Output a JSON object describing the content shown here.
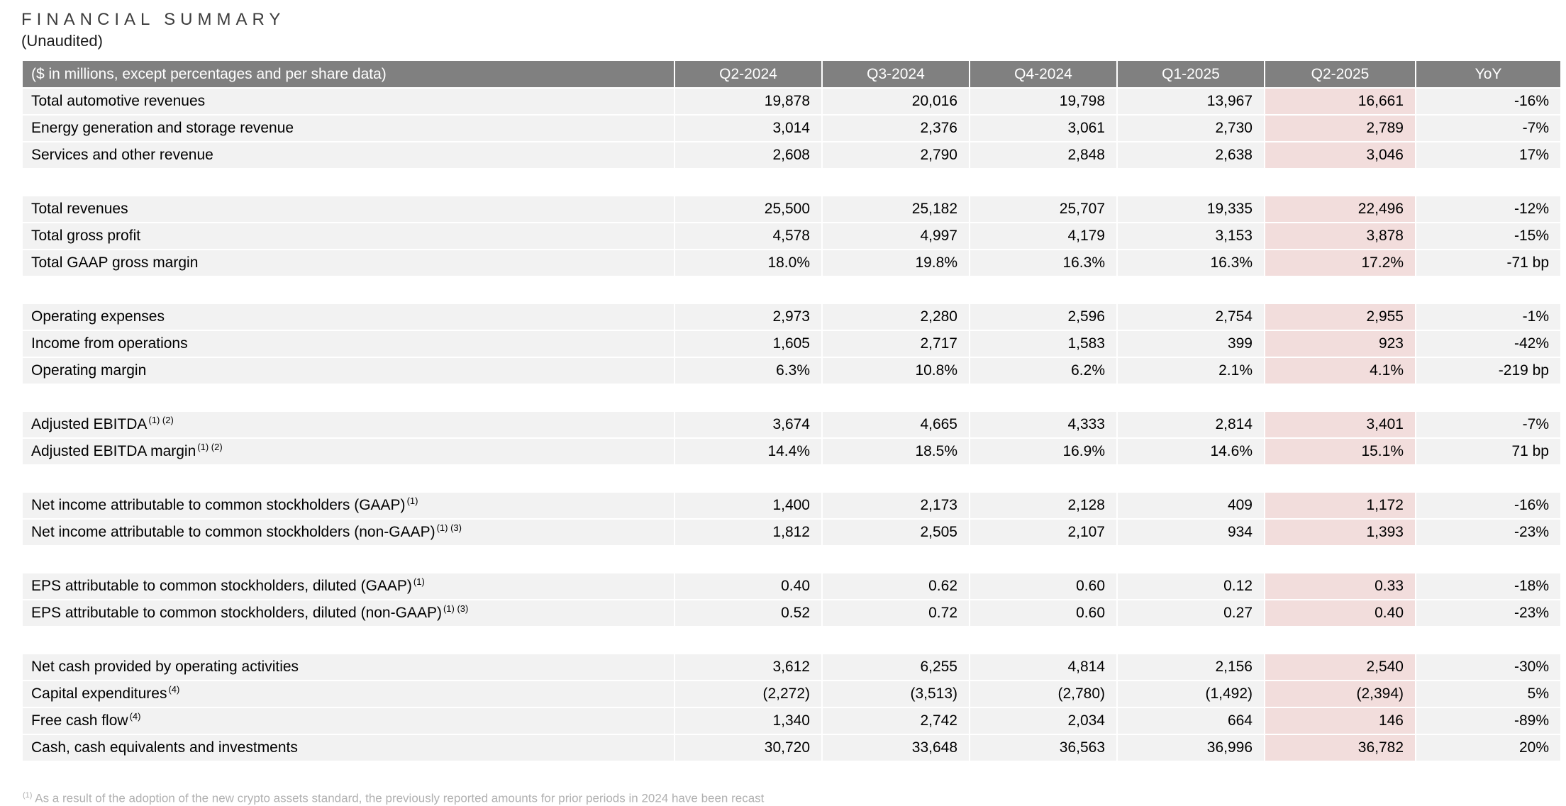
{
  "page": {
    "title": "FINANCIAL SUMMARY",
    "subtitle": "(Unaudited)"
  },
  "colors": {
    "header_bg": "#808080",
    "header_text": "#ffffff",
    "row_bg": "#f2f2f2",
    "highlight_column_bg": "#f2dddc",
    "footnote_text": "#b0b0b0"
  },
  "table": {
    "header": [
      "($ in millions, except percentages and per share data)",
      "Q2-2024",
      "Q3-2024",
      "Q4-2024",
      "Q1-2025",
      "Q2-2025",
      "YoY"
    ],
    "highlight_column": "Q2-2025",
    "sections": [
      {
        "rows": [
          {
            "label": "Total automotive revenues",
            "sup": "",
            "values": [
              "19,878",
              "20,016",
              "19,798",
              "13,967",
              "16,661",
              "-16%"
            ]
          },
          {
            "label": "Energy generation and storage revenue",
            "sup": "",
            "values": [
              "3,014",
              "2,376",
              "3,061",
              "2,730",
              "2,789",
              "-7%"
            ]
          },
          {
            "label": "Services and other revenue",
            "sup": "",
            "values": [
              "2,608",
              "2,790",
              "2,848",
              "2,638",
              "3,046",
              "17%"
            ]
          }
        ]
      },
      {
        "rows": [
          {
            "label": "Total revenues",
            "sup": "",
            "values": [
              "25,500",
              "25,182",
              "25,707",
              "19,335",
              "22,496",
              "-12%"
            ]
          },
          {
            "label": "Total gross profit",
            "sup": "",
            "values": [
              "4,578",
              "4,997",
              "4,179",
              "3,153",
              "3,878",
              "-15%"
            ]
          },
          {
            "label": "Total GAAP gross margin",
            "sup": "",
            "values": [
              "18.0%",
              "19.8%",
              "16.3%",
              "16.3%",
              "17.2%",
              "-71 bp"
            ]
          }
        ]
      },
      {
        "rows": [
          {
            "label": "Operating expenses",
            "sup": "",
            "values": [
              "2,973",
              "2,280",
              "2,596",
              "2,754",
              "2,955",
              "-1%"
            ]
          },
          {
            "label": "Income from operations",
            "sup": "",
            "values": [
              "1,605",
              "2,717",
              "1,583",
              "399",
              "923",
              "-42%"
            ]
          },
          {
            "label": "Operating margin",
            "sup": "",
            "values": [
              "6.3%",
              "10.8%",
              "6.2%",
              "2.1%",
              "4.1%",
              "-219 bp"
            ]
          }
        ]
      },
      {
        "rows": [
          {
            "label": "Adjusted EBITDA",
            "sup": "(1) (2)",
            "values": [
              "3,674",
              "4,665",
              "4,333",
              "2,814",
              "3,401",
              "-7%"
            ]
          },
          {
            "label": "Adjusted EBITDA margin",
            "sup": "(1) (2)",
            "values": [
              "14.4%",
              "18.5%",
              "16.9%",
              "14.6%",
              "15.1%",
              "71 bp"
            ]
          }
        ]
      },
      {
        "rows": [
          {
            "label": "Net income attributable to common stockholders (GAAP)",
            "sup": "(1)",
            "values": [
              "1,400",
              "2,173",
              "2,128",
              "409",
              "1,172",
              "-16%"
            ]
          },
          {
            "label": "Net income attributable to common stockholders (non-GAAP)",
            "sup": "(1) (3)",
            "values": [
              "1,812",
              "2,505",
              "2,107",
              "934",
              "1,393",
              "-23%"
            ]
          }
        ]
      },
      {
        "rows": [
          {
            "label": "EPS attributable to common stockholders, diluted (GAAP)",
            "sup": "(1)",
            "values": [
              "0.40",
              "0.62",
              "0.60",
              "0.12",
              "0.33",
              "-18%"
            ]
          },
          {
            "label": "EPS attributable to common stockholders, diluted (non-GAAP)",
            "sup": "(1) (3)",
            "values": [
              "0.52",
              "0.72",
              "0.60",
              "0.27",
              "0.40",
              "-23%"
            ]
          }
        ]
      },
      {
        "rows": [
          {
            "label": "Net cash provided by operating activities",
            "sup": "",
            "values": [
              "3,612",
              "6,255",
              "4,814",
              "2,156",
              "2,540",
              "-30%"
            ]
          },
          {
            "label": "Capital expenditures",
            "sup": "(4)",
            "values": [
              "(2,272)",
              "(3,513)",
              "(2,780)",
              "(1,492)",
              "(2,394)",
              "5%"
            ]
          },
          {
            "label": "Free cash flow",
            "sup": "(4)",
            "values": [
              "1,340",
              "2,742",
              "2,034",
              "664",
              "146",
              "-89%"
            ]
          },
          {
            "label": "Cash, cash equivalents and investments",
            "sup": "",
            "values": [
              "30,720",
              "33,648",
              "36,563",
              "36,996",
              "36,782",
              "20%"
            ]
          }
        ]
      }
    ]
  },
  "footnote": {
    "marker": "(1)",
    "text": "As a result of the adoption of the new crypto assets standard, the previously reported amounts for prior periods in 2024 have been recast"
  }
}
